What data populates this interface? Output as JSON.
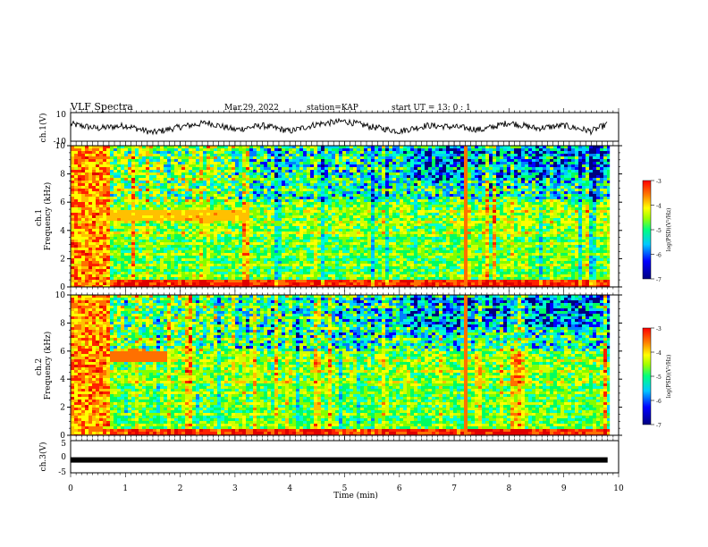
{
  "header": {
    "title": "VLF Spectra",
    "date": "Mar.29, 2022",
    "station": "station=KAP",
    "start": "start  UT =   13: 0  : 1"
  },
  "chart_data": [
    {
      "type": "line",
      "panel": "ch1-waveform",
      "ylabel": "ch.1(V)",
      "ylim": [
        -10,
        10
      ],
      "yticks": [
        "10",
        "-10"
      ],
      "x": [
        0,
        0.5,
        1,
        1.5,
        2,
        2.5,
        3,
        3.5,
        4,
        4.5,
        5,
        5.5,
        6,
        6.5,
        7,
        7.5,
        8,
        8.5,
        9,
        9.5,
        9.8
      ],
      "values": [
        2,
        -1,
        1,
        -4,
        0,
        3,
        -2,
        1,
        -3,
        2,
        4,
        0,
        -3,
        1,
        0,
        -2,
        3,
        -1,
        1,
        -3,
        2
      ]
    },
    {
      "type": "heatmap",
      "panel": "ch1-spectrogram",
      "ylabel": "ch.1\nFrequency (kHz)",
      "ylim": [
        0,
        10
      ],
      "yticks": [
        "0",
        "2",
        "4",
        "6",
        "8",
        "10"
      ],
      "colorbar": {
        "label": "log(PSD)(V²/Hz)",
        "range": [
          -7,
          -3
        ],
        "ticks": [
          "-3",
          "-4",
          "-5",
          "-6",
          "-7"
        ]
      }
    },
    {
      "type": "heatmap",
      "panel": "ch2-spectrogram",
      "ylabel": "ch.2\nFrequency (kHz)",
      "ylim": [
        0,
        10
      ],
      "yticks": [
        "0",
        "2",
        "4",
        "6",
        "8",
        "10"
      ],
      "colorbar": {
        "label": "log(PSD)(V²/Hz)",
        "range": [
          -7,
          -3
        ],
        "ticks": [
          "-3",
          "-4",
          "-5",
          "-6",
          "-7"
        ]
      }
    },
    {
      "type": "line",
      "panel": "ch3-waveform",
      "ylabel": "ch.3(V)",
      "ylim": [
        -5,
        5
      ],
      "yticks": [
        "5",
        "0",
        "-5"
      ],
      "x": [
        0,
        9.8
      ],
      "values": [
        -1,
        -1
      ]
    }
  ],
  "xaxis": {
    "label": "Time (min)",
    "ticks": [
      "0",
      "1",
      "2",
      "3",
      "4",
      "5",
      "6",
      "7",
      "8",
      "9",
      "10"
    ],
    "xlim": [
      0,
      10
    ]
  },
  "colormap": [
    "#00007f",
    "#0000ff",
    "#00a0ff",
    "#00ffff",
    "#00ff66",
    "#aaff00",
    "#ffff00",
    "#ffa000",
    "#ff3000",
    "#ff0000"
  ]
}
